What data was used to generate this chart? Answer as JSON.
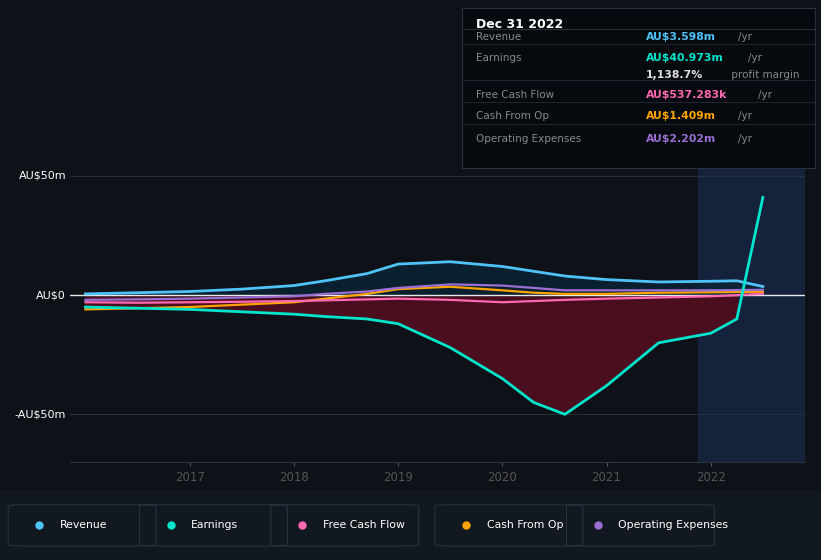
{
  "bg_color": "#0e1117",
  "chart_bg": "#0e1117",
  "highlight_bg": "#142030",
  "years": [
    2016.0,
    2016.5,
    2017.0,
    2017.5,
    2018.0,
    2018.3,
    2018.7,
    2019.0,
    2019.5,
    2020.0,
    2020.3,
    2020.6,
    2021.0,
    2021.5,
    2022.0,
    2022.25,
    2022.5
  ],
  "revenue": [
    0.5,
    1.0,
    1.5,
    2.5,
    4.0,
    6.0,
    9.0,
    13.0,
    14.0,
    12.0,
    10.0,
    8.0,
    6.5,
    5.5,
    5.8,
    6.0,
    3.598
  ],
  "earnings": [
    -5.0,
    -5.5,
    -6.0,
    -7.0,
    -8.0,
    -9.0,
    -10.0,
    -12.0,
    -22.0,
    -35.0,
    -45.0,
    -50.0,
    -38.0,
    -20.0,
    -16.0,
    -10.0,
    40.973
  ],
  "free_cash_flow": [
    -3.0,
    -3.2,
    -3.0,
    -2.8,
    -2.5,
    -2.2,
    -1.8,
    -1.5,
    -2.0,
    -3.0,
    -2.5,
    -2.0,
    -1.5,
    -1.0,
    -0.5,
    0.0,
    0.537
  ],
  "cash_from_op": [
    -6.0,
    -5.5,
    -5.0,
    -4.0,
    -3.0,
    -1.5,
    0.5,
    2.5,
    3.5,
    2.0,
    1.0,
    0.5,
    0.5,
    1.0,
    1.2,
    1.3,
    1.409
  ],
  "operating_expenses": [
    -2.0,
    -1.8,
    -1.5,
    -1.0,
    -0.5,
    0.5,
    1.5,
    3.0,
    4.5,
    4.0,
    3.0,
    2.0,
    2.0,
    2.0,
    2.0,
    2.1,
    2.202
  ],
  "revenue_color": "#4fc3f7",
  "earnings_color": "#00e5cc",
  "fcf_color": "#ff69b4",
  "cfo_color": "#ffa500",
  "opex_color": "#9b6fd4",
  "earnings_fill_color": "#4a0e1e",
  "revenue_fill_color": "#0a2535",
  "ylim": [
    -70,
    58
  ],
  "ytick_vals": [
    -50,
    0,
    50
  ],
  "ytick_labels": [
    "-AU$50m",
    "AU$0",
    "AU$50m"
  ],
  "xlim": [
    2015.85,
    2022.9
  ],
  "xticks": [
    2017,
    2018,
    2019,
    2020,
    2021,
    2022
  ],
  "highlight_x_start": 2021.88,
  "highlight_x_end": 2022.9,
  "info_box_title": "Dec 31 2022",
  "info_rows": [
    {
      "label": "Revenue",
      "value": "AU$3.598m",
      "color": "#4fc3f7",
      "unit": "/yr",
      "sub": null
    },
    {
      "label": "Earnings",
      "value": "AU$40.973m",
      "color": "#00e5cc",
      "unit": "/yr",
      "sub": "1,138.7% profit margin"
    },
    {
      "label": "Free Cash Flow",
      "value": "AU$537.283k",
      "color": "#ff69b4",
      "unit": "/yr",
      "sub": null
    },
    {
      "label": "Cash From Op",
      "value": "AU$1.409m",
      "color": "#ffa500",
      "unit": "/yr",
      "sub": null
    },
    {
      "label": "Operating Expenses",
      "value": "AU$2.202m",
      "color": "#9b6fd4",
      "unit": "/yr",
      "sub": null
    }
  ],
  "legend_items": [
    {
      "label": "Revenue",
      "color": "#4fc3f7"
    },
    {
      "label": "Earnings",
      "color": "#00e5cc"
    },
    {
      "label": "Free Cash Flow",
      "color": "#ff69b4"
    },
    {
      "label": "Cash From Op",
      "color": "#ffa500"
    },
    {
      "label": "Operating Expenses",
      "color": "#9b6fd4"
    }
  ]
}
